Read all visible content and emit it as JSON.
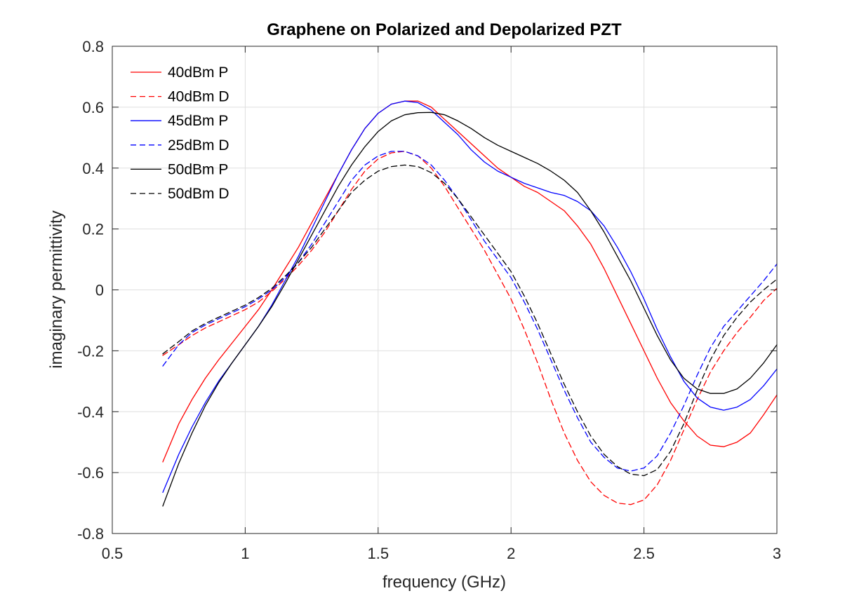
{
  "chart_data": {
    "type": "line",
    "title": "Graphene on Polarized and Depolarized PZT",
    "xlabel": "frequency (GHz)",
    "ylabel": "imaginary permittivity",
    "xlim": [
      0.5,
      3
    ],
    "ylim": [
      -0.8,
      0.8
    ],
    "xticks": [
      0.5,
      1,
      1.5,
      2,
      2.5,
      3
    ],
    "xtick_labels": [
      "0.5",
      "1",
      "1.5",
      "2",
      "2.5",
      "3"
    ],
    "yticks": [
      -0.8,
      -0.6,
      -0.4,
      -0.2,
      0,
      0.2,
      0.4,
      0.6,
      0.8
    ],
    "ytick_labels": [
      "-0.8",
      "-0.6",
      "-0.4",
      "-0.2",
      "0",
      "0.2",
      "0.4",
      "0.6",
      "0.8"
    ],
    "grid": true,
    "legend_position": "top-left",
    "series": [
      {
        "name": "40dBm P",
        "color": "#ff0000",
        "dash": "solid",
        "x": [
          0.69,
          0.75,
          0.8,
          0.85,
          0.9,
          0.95,
          1.0,
          1.05,
          1.1,
          1.15,
          1.2,
          1.25,
          1.3,
          1.35,
          1.4,
          1.45,
          1.5,
          1.55,
          1.6,
          1.65,
          1.7,
          1.75,
          1.8,
          1.85,
          1.9,
          1.95,
          2.0,
          2.05,
          2.1,
          2.15,
          2.2,
          2.25,
          2.3,
          2.35,
          2.4,
          2.45,
          2.5,
          2.55,
          2.6,
          2.65,
          2.7,
          2.75,
          2.8,
          2.85,
          2.9,
          2.95,
          3.0
        ],
        "y": [
          -0.565,
          -0.44,
          -0.36,
          -0.29,
          -0.23,
          -0.175,
          -0.12,
          -0.065,
          0.0,
          0.07,
          0.14,
          0.22,
          0.3,
          0.38,
          0.46,
          0.53,
          0.58,
          0.61,
          0.62,
          0.62,
          0.6,
          0.56,
          0.52,
          0.48,
          0.44,
          0.4,
          0.37,
          0.34,
          0.32,
          0.29,
          0.26,
          0.21,
          0.15,
          0.07,
          -0.02,
          -0.11,
          -0.2,
          -0.29,
          -0.37,
          -0.43,
          -0.48,
          -0.51,
          -0.515,
          -0.5,
          -0.47,
          -0.41,
          -0.345
        ]
      },
      {
        "name": "40dBm D",
        "color": "#ff0000",
        "dash": "dashed",
        "x": [
          0.69,
          0.75,
          0.8,
          0.85,
          0.9,
          0.95,
          1.0,
          1.05,
          1.1,
          1.15,
          1.2,
          1.25,
          1.3,
          1.35,
          1.4,
          1.45,
          1.5,
          1.55,
          1.6,
          1.65,
          1.7,
          1.75,
          1.8,
          1.85,
          1.9,
          1.95,
          2.0,
          2.05,
          2.1,
          2.15,
          2.2,
          2.25,
          2.3,
          2.35,
          2.4,
          2.45,
          2.5,
          2.55,
          2.6,
          2.65,
          2.7,
          2.75,
          2.8,
          2.85,
          2.9,
          2.95,
          3.0
        ],
        "y": [
          -0.215,
          -0.18,
          -0.15,
          -0.125,
          -0.105,
          -0.085,
          -0.065,
          -0.04,
          -0.005,
          0.035,
          0.08,
          0.13,
          0.19,
          0.26,
          0.33,
          0.39,
          0.43,
          0.45,
          0.455,
          0.44,
          0.4,
          0.34,
          0.27,
          0.2,
          0.13,
          0.05,
          -0.03,
          -0.13,
          -0.24,
          -0.36,
          -0.47,
          -0.56,
          -0.63,
          -0.675,
          -0.7,
          -0.705,
          -0.69,
          -0.64,
          -0.56,
          -0.46,
          -0.36,
          -0.27,
          -0.2,
          -0.14,
          -0.09,
          -0.035,
          0.005
        ]
      },
      {
        "name": "45dBm P",
        "color": "#0000ff",
        "dash": "solid",
        "x": [
          0.69,
          0.75,
          0.8,
          0.85,
          0.9,
          0.95,
          1.0,
          1.05,
          1.1,
          1.15,
          1.2,
          1.25,
          1.3,
          1.35,
          1.4,
          1.45,
          1.5,
          1.55,
          1.6,
          1.65,
          1.7,
          1.75,
          1.8,
          1.85,
          1.9,
          1.95,
          2.0,
          2.05,
          2.1,
          2.15,
          2.2,
          2.25,
          2.3,
          2.35,
          2.4,
          2.45,
          2.5,
          2.55,
          2.6,
          2.65,
          2.7,
          2.75,
          2.8,
          2.85,
          2.9,
          2.95,
          3.0
        ],
        "y": [
          -0.665,
          -0.54,
          -0.45,
          -0.37,
          -0.3,
          -0.24,
          -0.18,
          -0.12,
          -0.05,
          0.03,
          0.11,
          0.2,
          0.29,
          0.38,
          0.46,
          0.53,
          0.58,
          0.61,
          0.62,
          0.615,
          0.59,
          0.55,
          0.51,
          0.46,
          0.42,
          0.39,
          0.37,
          0.35,
          0.335,
          0.32,
          0.31,
          0.29,
          0.26,
          0.21,
          0.14,
          0.06,
          -0.03,
          -0.13,
          -0.22,
          -0.3,
          -0.355,
          -0.385,
          -0.395,
          -0.385,
          -0.36,
          -0.315,
          -0.26
        ]
      },
      {
        "name": "25dBm D",
        "color": "#0000ff",
        "dash": "dashed",
        "x": [
          0.69,
          0.75,
          0.8,
          0.85,
          0.9,
          0.95,
          1.0,
          1.05,
          1.1,
          1.15,
          1.2,
          1.25,
          1.3,
          1.35,
          1.4,
          1.45,
          1.5,
          1.55,
          1.6,
          1.65,
          1.7,
          1.75,
          1.8,
          1.85,
          1.9,
          1.95,
          2.0,
          2.05,
          2.1,
          2.15,
          2.2,
          2.25,
          2.3,
          2.35,
          2.4,
          2.45,
          2.5,
          2.55,
          2.6,
          2.65,
          2.7,
          2.75,
          2.8,
          2.85,
          2.9,
          2.95,
          3.0
        ],
        "y": [
          -0.25,
          -0.18,
          -0.14,
          -0.115,
          -0.095,
          -0.075,
          -0.055,
          -0.03,
          0.0,
          0.04,
          0.09,
          0.15,
          0.22,
          0.29,
          0.36,
          0.41,
          0.44,
          0.455,
          0.455,
          0.44,
          0.41,
          0.36,
          0.3,
          0.23,
          0.16,
          0.1,
          0.04,
          -0.04,
          -0.13,
          -0.23,
          -0.33,
          -0.42,
          -0.5,
          -0.55,
          -0.585,
          -0.595,
          -0.585,
          -0.545,
          -0.47,
          -0.38,
          -0.28,
          -0.19,
          -0.12,
          -0.07,
          -0.02,
          0.03,
          0.085
        ]
      },
      {
        "name": "50dBm P",
        "color": "#000000",
        "dash": "solid",
        "x": [
          0.69,
          0.75,
          0.8,
          0.85,
          0.9,
          0.95,
          1.0,
          1.05,
          1.1,
          1.15,
          1.2,
          1.25,
          1.3,
          1.35,
          1.4,
          1.45,
          1.5,
          1.55,
          1.6,
          1.65,
          1.7,
          1.75,
          1.8,
          1.85,
          1.9,
          1.95,
          2.0,
          2.05,
          2.1,
          2.15,
          2.2,
          2.25,
          2.3,
          2.35,
          2.4,
          2.45,
          2.5,
          2.55,
          2.6,
          2.65,
          2.7,
          2.75,
          2.8,
          2.85,
          2.9,
          2.95,
          3.0
        ],
        "y": [
          -0.71,
          -0.57,
          -0.47,
          -0.38,
          -0.305,
          -0.24,
          -0.18,
          -0.12,
          -0.055,
          0.02,
          0.1,
          0.18,
          0.26,
          0.34,
          0.41,
          0.47,
          0.52,
          0.555,
          0.575,
          0.582,
          0.583,
          0.575,
          0.555,
          0.53,
          0.5,
          0.475,
          0.455,
          0.435,
          0.415,
          0.39,
          0.36,
          0.32,
          0.26,
          0.19,
          0.11,
          0.03,
          -0.06,
          -0.15,
          -0.23,
          -0.29,
          -0.325,
          -0.34,
          -0.34,
          -0.325,
          -0.29,
          -0.24,
          -0.18
        ]
      },
      {
        "name": "50dBm D",
        "color": "#000000",
        "dash": "dashed",
        "x": [
          0.69,
          0.75,
          0.8,
          0.85,
          0.9,
          0.95,
          1.0,
          1.05,
          1.1,
          1.15,
          1.2,
          1.25,
          1.3,
          1.35,
          1.4,
          1.45,
          1.5,
          1.55,
          1.6,
          1.65,
          1.7,
          1.75,
          1.8,
          1.85,
          1.9,
          1.95,
          2.0,
          2.05,
          2.1,
          2.15,
          2.2,
          2.25,
          2.3,
          2.35,
          2.4,
          2.45,
          2.5,
          2.55,
          2.6,
          2.65,
          2.7,
          2.75,
          2.8,
          2.85,
          2.9,
          2.95,
          3.0
        ],
        "y": [
          -0.21,
          -0.17,
          -0.135,
          -0.11,
          -0.09,
          -0.07,
          -0.05,
          -0.025,
          0.005,
          0.045,
          0.09,
          0.14,
          0.2,
          0.26,
          0.32,
          0.36,
          0.39,
          0.405,
          0.41,
          0.405,
          0.385,
          0.35,
          0.3,
          0.24,
          0.18,
          0.12,
          0.06,
          -0.02,
          -0.11,
          -0.21,
          -0.31,
          -0.4,
          -0.48,
          -0.54,
          -0.58,
          -0.605,
          -0.61,
          -0.59,
          -0.53,
          -0.44,
          -0.33,
          -0.23,
          -0.15,
          -0.09,
          -0.04,
          0.0,
          0.035
        ]
      }
    ]
  }
}
